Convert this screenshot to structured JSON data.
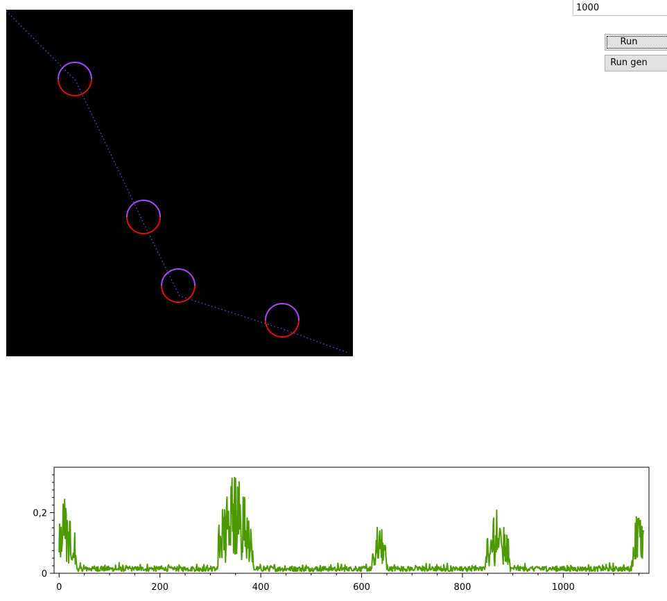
{
  "controls": {
    "iterations_value": "1000",
    "run_label": "Run",
    "run_gen_label": "Run gen"
  },
  "visualization": {
    "background_color": "#000000",
    "path_color": "#7a4dff",
    "circle_upper_color": "#a64dff",
    "circle_lower_color": "#e01010",
    "path_points": [
      [
        0,
        2
      ],
      [
        100,
        102
      ],
      [
        199,
        310
      ],
      [
        250,
        413
      ],
      [
        400,
        461
      ],
      [
        493,
        495
      ]
    ],
    "circles": [
      [
        99,
        100,
        24
      ],
      [
        198,
        299,
        24
      ],
      [
        248,
        398,
        24
      ],
      [
        398,
        448,
        24
      ]
    ]
  },
  "chart_data": {
    "type": "line",
    "title": "",
    "xlabel": "",
    "ylabel": "",
    "xlim": [
      -10,
      1170
    ],
    "ylim": [
      0,
      0.35
    ],
    "x_ticks": [
      0,
      200,
      400,
      600,
      800,
      1000
    ],
    "x_tick_labels": [
      "0",
      "200",
      "400",
      "600",
      "800",
      "1000"
    ],
    "y_ticks": [
      0,
      0.2
    ],
    "y_tick_labels": [
      "0",
      "0,2"
    ],
    "line_color": "#4c9900",
    "grid": false,
    "legend": "none",
    "series": [
      {
        "peaks": [
          {
            "center": 10,
            "width": 25,
            "height": 0.24
          },
          {
            "center": 350,
            "width": 35,
            "height": 0.35
          },
          {
            "center": 635,
            "width": 15,
            "height": 0.17
          },
          {
            "center": 870,
            "width": 25,
            "height": 0.2
          },
          {
            "center": 1150,
            "width": 15,
            "height": 0.21
          }
        ],
        "baseline": 0.015,
        "n_points": 1160
      }
    ]
  }
}
